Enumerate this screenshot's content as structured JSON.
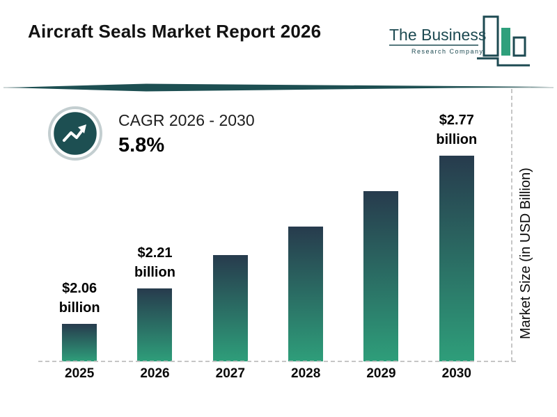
{
  "header": {
    "title": "Aircraft Seals Market Report 2026",
    "logo": {
      "line1": "The Business",
      "line2": "Research Company"
    }
  },
  "cagr": {
    "label": "CAGR 2026 - 2030",
    "value": "5.8%"
  },
  "chart_data": {
    "type": "bar",
    "title": "Aircraft Seals Market Report 2026",
    "categories": [
      "2025",
      "2026",
      "2027",
      "2028",
      "2029",
      "2030"
    ],
    "values": [
      2.06,
      2.21,
      2.35,
      2.47,
      2.62,
      2.77
    ],
    "bar_labels": [
      "$2.06 billion",
      "$2.21 billion",
      "",
      "",
      "",
      "$2.77 billion"
    ],
    "xlabel": "",
    "ylabel": "Market Size (in USD Billion)",
    "units": "USD Billion",
    "ylim": [
      1.9,
      2.9
    ],
    "grid": false,
    "legend": false,
    "colors": {
      "bar_gradient_top": "#273b4d",
      "bar_gradient_bottom": "#2e9e7a",
      "accent_teal": "#1d4f52",
      "logo_green": "#2fa07c",
      "dashed_line": "#c6c6c6"
    }
  }
}
